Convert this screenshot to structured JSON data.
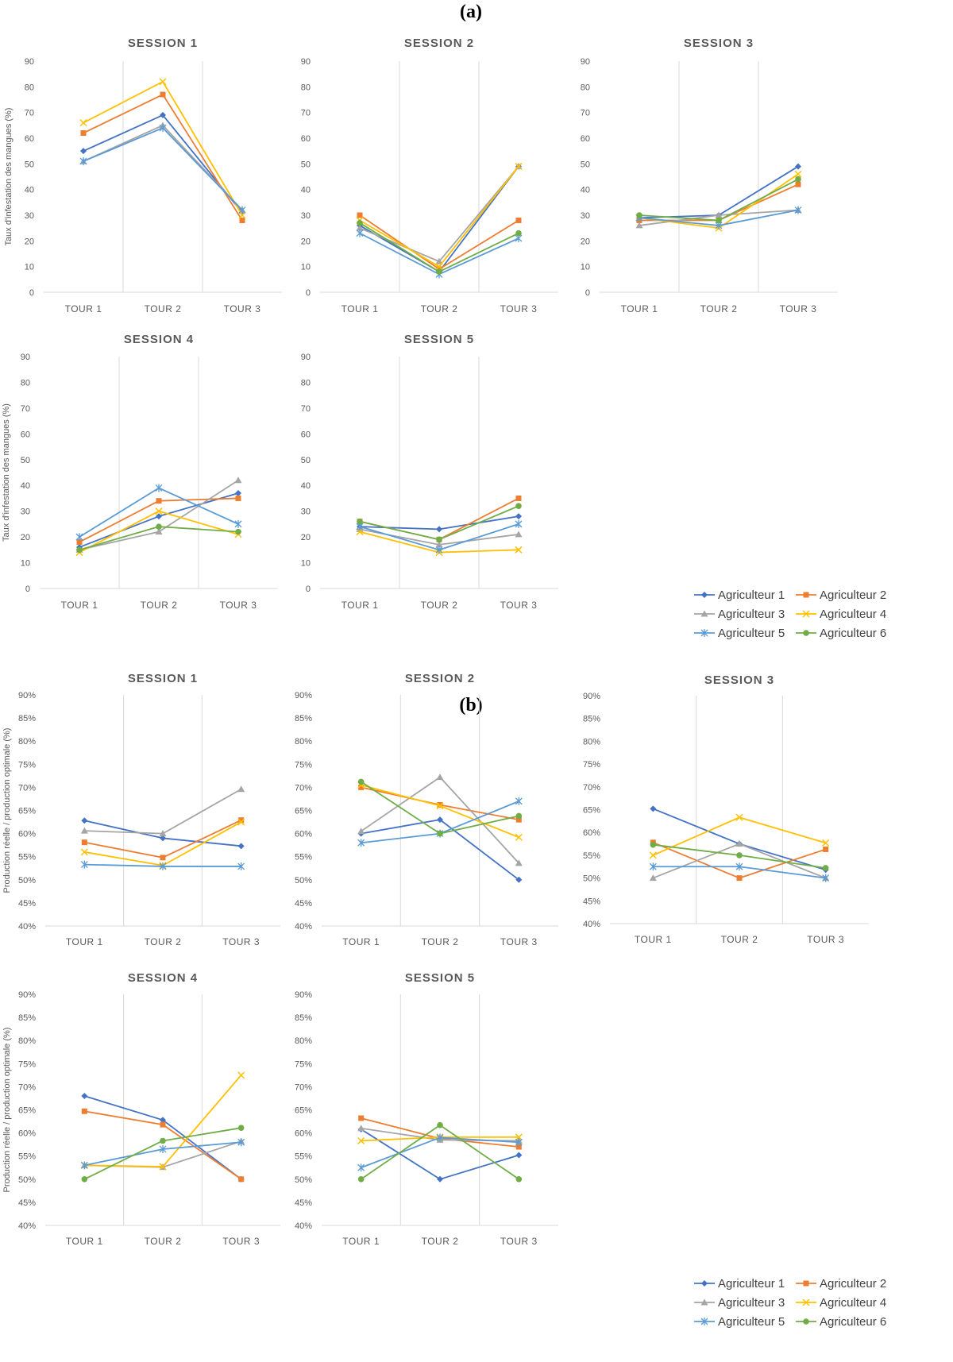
{
  "panels": [
    {
      "label": "(a)"
    },
    {
      "label": "(b)"
    }
  ],
  "legend": [
    "Agriculteur 1",
    "Agriculteur 2",
    "Agriculteur 3",
    "Agriculteur 4",
    "Agriculteur 5",
    "Agriculteur 6"
  ],
  "colors": {
    "Agriculteur 1": "#4472C4",
    "Agriculteur 2": "#ED7D31",
    "Agriculteur 3": "#A5A5A5",
    "Agriculteur 4": "#FFC000",
    "Agriculteur 5": "#5B9BD5",
    "Agriculteur 6": "#70AD47"
  },
  "markers": {
    "Agriculteur 1": "diamond",
    "Agriculteur 2": "square",
    "Agriculteur 3": "triangle",
    "Agriculteur 4": "x",
    "Agriculteur 5": "star",
    "Agriculteur 6": "circle"
  },
  "chart_data": [
    {
      "type": "line",
      "panel": "(a)",
      "title": "SESSION 1",
      "categories": [
        "TOUR 1",
        "TOUR 2",
        "TOUR 3"
      ],
      "ylabel": "Taux d'infestation des mangues (%)",
      "ylim": [
        0,
        90
      ],
      "yticks": [
        "0",
        "10",
        "20",
        "30",
        "40",
        "50",
        "60",
        "70",
        "80",
        "90"
      ],
      "series": [
        {
          "name": "Agriculteur 1",
          "values": [
            55,
            69,
            31
          ]
        },
        {
          "name": "Agriculteur 2",
          "values": [
            62,
            77,
            28
          ]
        },
        {
          "name": "Agriculteur 3",
          "values": [
            51,
            65,
            32
          ]
        },
        {
          "name": "Agriculteur 4",
          "values": [
            66,
            82,
            30
          ]
        },
        {
          "name": "Agriculteur 5",
          "values": [
            51,
            64,
            32
          ]
        }
      ]
    },
    {
      "type": "line",
      "panel": "(a)",
      "title": "SESSION 2",
      "categories": [
        "TOUR 1",
        "TOUR 2",
        "TOUR 3"
      ],
      "ylabel": "",
      "ylim": [
        0,
        90
      ],
      "yticks": [
        "0",
        "10",
        "20",
        "30",
        "40",
        "50",
        "60",
        "70",
        "80",
        "90"
      ],
      "series": [
        {
          "name": "Agriculteur 1",
          "values": [
            26,
            8,
            49
          ]
        },
        {
          "name": "Agriculteur 2",
          "values": [
            30,
            9,
            28
          ]
        },
        {
          "name": "Agriculteur 3",
          "values": [
            25,
            12,
            49
          ]
        },
        {
          "name": "Agriculteur 4",
          "values": [
            28,
            10,
            49
          ]
        },
        {
          "name": "Agriculteur 5",
          "values": [
            23,
            7,
            21
          ]
        },
        {
          "name": "Agriculteur 6",
          "values": [
            27,
            8,
            23
          ]
        }
      ]
    },
    {
      "type": "line",
      "panel": "(a)",
      "title": "SESSION 3",
      "categories": [
        "TOUR 1",
        "TOUR 2",
        "TOUR 3"
      ],
      "ylabel": "",
      "ylim": [
        0,
        90
      ],
      "yticks": [
        "0",
        "10",
        "20",
        "30",
        "40",
        "50",
        "60",
        "70",
        "80",
        "90"
      ],
      "series": [
        {
          "name": "Agriculteur 1",
          "values": [
            29,
            30,
            49
          ]
        },
        {
          "name": "Agriculteur 2",
          "values": [
            28,
            28,
            42
          ]
        },
        {
          "name": "Agriculteur 3",
          "values": [
            26,
            30,
            32
          ]
        },
        {
          "name": "Agriculteur 4",
          "values": [
            29,
            25,
            46
          ]
        },
        {
          "name": "Agriculteur 5",
          "values": [
            29,
            26,
            32
          ]
        },
        {
          "name": "Agriculteur 6",
          "values": [
            30,
            28,
            44
          ]
        }
      ]
    },
    {
      "type": "line",
      "panel": "(a)",
      "title": "SESSION 4",
      "categories": [
        "TOUR 1",
        "TOUR 2",
        "TOUR 3"
      ],
      "ylabel": "Taux d'infestation des mangues (%)",
      "ylim": [
        0,
        90
      ],
      "yticks": [
        "0",
        "10",
        "20",
        "30",
        "40",
        "50",
        "60",
        "70",
        "80",
        "90"
      ],
      "series": [
        {
          "name": "Agriculteur 1",
          "values": [
            16,
            28,
            37
          ]
        },
        {
          "name": "Agriculteur 2",
          "values": [
            18,
            34,
            35
          ]
        },
        {
          "name": "Agriculteur 3",
          "values": [
            15,
            22,
            42
          ]
        },
        {
          "name": "Agriculteur 4",
          "values": [
            14,
            30,
            21
          ]
        },
        {
          "name": "Agriculteur 5",
          "values": [
            20,
            39,
            25
          ]
        },
        {
          "name": "Agriculteur 6",
          "values": [
            15,
            24,
            22
          ]
        }
      ]
    },
    {
      "type": "line",
      "panel": "(a)",
      "title": "SESSION 5",
      "categories": [
        "TOUR 1",
        "TOUR 2",
        "TOUR 3"
      ],
      "ylabel": "",
      "ylim": [
        0,
        90
      ],
      "yticks": [
        "0",
        "10",
        "20",
        "30",
        "40",
        "50",
        "60",
        "70",
        "80",
        "90"
      ],
      "series": [
        {
          "name": "Agriculteur 1",
          "values": [
            24,
            23,
            28
          ]
        },
        {
          "name": "Agriculteur 2",
          "values": [
            26,
            19,
            35
          ]
        },
        {
          "name": "Agriculteur 3",
          "values": [
            23,
            17,
            21
          ]
        },
        {
          "name": "Agriculteur 4",
          "values": [
            22,
            14,
            15
          ]
        },
        {
          "name": "Agriculteur 5",
          "values": [
            24,
            15,
            25
          ]
        },
        {
          "name": "Agriculteur 6",
          "values": [
            26,
            19,
            32
          ]
        }
      ]
    },
    {
      "type": "line",
      "panel": "(b)",
      "title": "SESSION 1",
      "categories": [
        "TOUR 1",
        "TOUR 2",
        "TOUR 3"
      ],
      "ylabel": "Production réelle / production optimale (%)",
      "ylim": [
        40,
        90
      ],
      "yticks": [
        "40%",
        "45%",
        "50%",
        "55%",
        "60%",
        "65%",
        "70%",
        "75%",
        "80%",
        "85%",
        "90%"
      ],
      "series": [
        {
          "name": "Agriculteur 1",
          "values": [
            62.8,
            59,
            57.3
          ]
        },
        {
          "name": "Agriculteur 2",
          "values": [
            58.1,
            54.8,
            62.9
          ]
        },
        {
          "name": "Agriculteur 3",
          "values": [
            60.6,
            60,
            69.6
          ]
        },
        {
          "name": "Agriculteur 4",
          "values": [
            56,
            53.1,
            62.5
          ]
        },
        {
          "name": "Agriculteur 5",
          "values": [
            53.3,
            52.9,
            52.9
          ]
        }
      ]
    },
    {
      "type": "line",
      "panel": "(b)",
      "title": "SESSION 2",
      "categories": [
        "TOUR 1",
        "TOUR 2",
        "TOUR 3"
      ],
      "ylabel": "",
      "ylim": [
        40,
        90
      ],
      "yticks": [
        "40%",
        "45%",
        "50%",
        "55%",
        "60%",
        "65%",
        "70%",
        "75%",
        "80%",
        "85%",
        "90%"
      ],
      "series": [
        {
          "name": "Agriculteur 1",
          "values": [
            60,
            63,
            50
          ]
        },
        {
          "name": "Agriculteur 2",
          "values": [
            70,
            66.2,
            63
          ]
        },
        {
          "name": "Agriculteur 3",
          "values": [
            60.5,
            72.2,
            53.6
          ]
        },
        {
          "name": "Agriculteur 4",
          "values": [
            70.5,
            66,
            59.2
          ]
        },
        {
          "name": "Agriculteur 5",
          "values": [
            58,
            60,
            67
          ]
        },
        {
          "name": "Agriculteur 6",
          "values": [
            71.2,
            60,
            63.8
          ]
        }
      ]
    },
    {
      "type": "line",
      "panel": "(b)",
      "title": "SESSION 3",
      "categories": [
        "TOUR 1",
        "TOUR 2",
        "TOUR 3"
      ],
      "ylabel": "",
      "ylim": [
        40,
        90
      ],
      "yticks": [
        "40%",
        "45%",
        "50%",
        "55%",
        "60%",
        "65%",
        "70%",
        "75%",
        "80%",
        "85%",
        "90%"
      ],
      "series": [
        {
          "name": "Agriculteur 1",
          "values": [
            65.2,
            57.5,
            51.8
          ]
        },
        {
          "name": "Agriculteur 2",
          "values": [
            57.8,
            50,
            56.3
          ]
        },
        {
          "name": "Agriculteur 3",
          "values": [
            50,
            57.5,
            50
          ]
        },
        {
          "name": "Agriculteur 4",
          "values": [
            55,
            63.3,
            57.7
          ]
        },
        {
          "name": "Agriculteur 5",
          "values": [
            52.5,
            52.5,
            50
          ]
        },
        {
          "name": "Agriculteur 6",
          "values": [
            57.3,
            55,
            52.2
          ]
        }
      ]
    },
    {
      "type": "line",
      "panel": "(b)",
      "title": "SESSION 4",
      "categories": [
        "TOUR 1",
        "TOUR 2",
        "TOUR 3"
      ],
      "ylabel": "Production réelle / production optimale (%)",
      "ylim": [
        40,
        90
      ],
      "yticks": [
        "40%",
        "45%",
        "50%",
        "55%",
        "60%",
        "65%",
        "70%",
        "75%",
        "80%",
        "85%",
        "90%"
      ],
      "series": [
        {
          "name": "Agriculteur 1",
          "values": [
            68,
            62.8,
            50
          ]
        },
        {
          "name": "Agriculteur 2",
          "values": [
            64.7,
            61.8,
            50
          ]
        },
        {
          "name": "Agriculteur 3",
          "values": [
            53,
            52.6,
            58.2
          ]
        },
        {
          "name": "Agriculteur 4",
          "values": [
            53,
            52.7,
            72.5
          ]
        },
        {
          "name": "Agriculteur 5",
          "values": [
            53,
            56.5,
            58
          ]
        },
        {
          "name": "Agriculteur 6",
          "values": [
            50,
            58.3,
            61.1
          ]
        }
      ]
    },
    {
      "type": "line",
      "panel": "(b)",
      "title": "SESSION 5",
      "categories": [
        "TOUR 1",
        "TOUR 2",
        "TOUR 3"
      ],
      "ylabel": "",
      "ylim": [
        40,
        90
      ],
      "yticks": [
        "40%",
        "45%",
        "50%",
        "55%",
        "60%",
        "65%",
        "70%",
        "75%",
        "80%",
        "85%",
        "90%"
      ],
      "series": [
        {
          "name": "Agriculteur 1",
          "values": [
            60.8,
            50,
            55.2
          ]
        },
        {
          "name": "Agriculteur 2",
          "values": [
            63.2,
            58.8,
            57
          ]
        },
        {
          "name": "Agriculteur 3",
          "values": [
            61,
            58.5,
            58.3
          ]
        },
        {
          "name": "Agriculteur 4",
          "values": [
            58.3,
            59.1,
            59.1
          ]
        },
        {
          "name": "Agriculteur 5",
          "values": [
            52.5,
            59,
            58
          ]
        },
        {
          "name": "Agriculteur 6",
          "values": [
            50,
            61.7,
            50
          ]
        }
      ]
    }
  ]
}
